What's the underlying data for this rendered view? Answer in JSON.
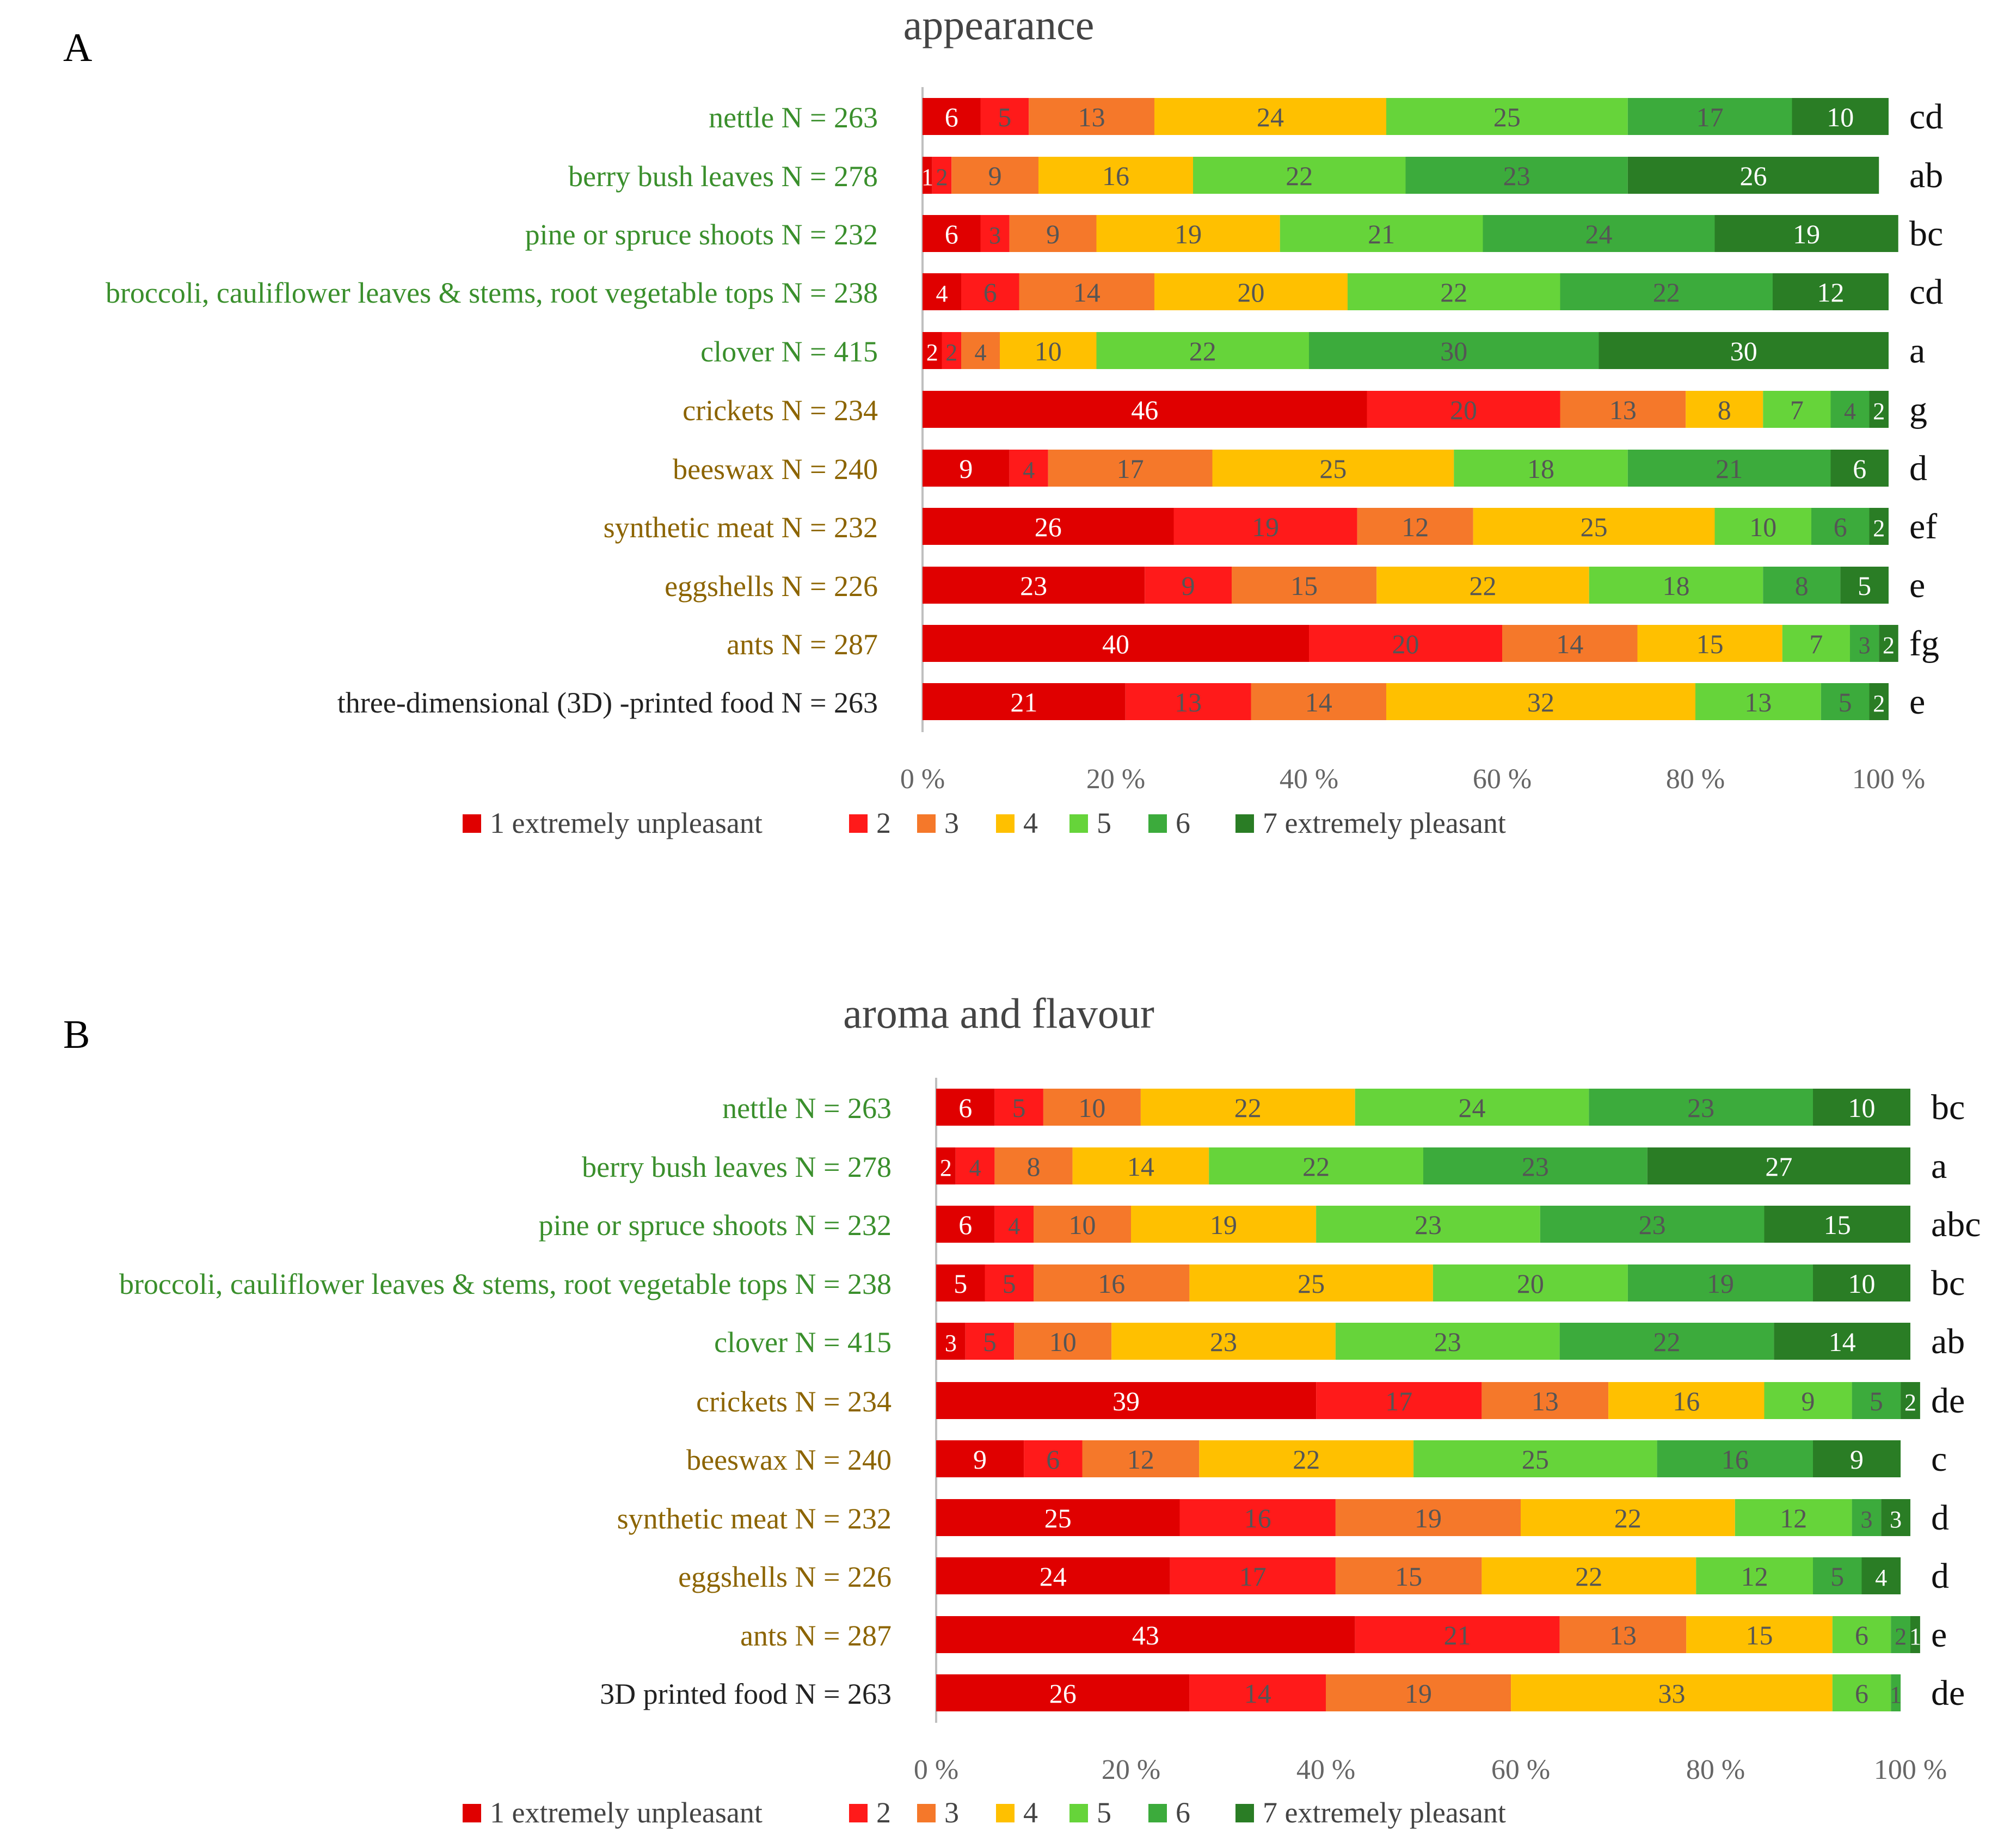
{
  "chart_data": [
    {
      "type": "bar",
      "stacked": true,
      "orientation": "horizontal",
      "panel_label": "A",
      "title": "appearance",
      "xlim": [
        0,
        100
      ],
      "xticks": [
        "0 %",
        "20 %",
        "40 %",
        "60 %",
        "80 %",
        "100 %"
      ],
      "categories": [
        {
          "label": "nettle N = 263",
          "group": "plant",
          "letters": "cd",
          "values": [
            6,
            5,
            13,
            24,
            25,
            17,
            10
          ]
        },
        {
          "label": "berry bush leaves N = 278",
          "group": "plant",
          "letters": "ab",
          "values": [
            1,
            2,
            9,
            16,
            22,
            23,
            26
          ]
        },
        {
          "label": "pine or spruce shoots N = 232",
          "group": "plant",
          "letters": "bc",
          "values": [
            6,
            3,
            9,
            19,
            21,
            24,
            19
          ]
        },
        {
          "label": "broccoli, cauliflower leaves & stems, root vegetable tops N = 238",
          "group": "plant",
          "letters": "cd",
          "values": [
            4,
            6,
            14,
            20,
            22,
            22,
            12
          ]
        },
        {
          "label": "clover N = 415",
          "group": "plant",
          "letters": "a",
          "values": [
            2,
            2,
            4,
            10,
            22,
            30,
            30
          ]
        },
        {
          "label": "crickets N = 234",
          "group": "novel",
          "letters": "g",
          "values": [
            46,
            20,
            13,
            8,
            7,
            4,
            2
          ]
        },
        {
          "label": "beeswax N = 240",
          "group": "novel",
          "letters": "d",
          "values": [
            9,
            4,
            17,
            25,
            18,
            21,
            6
          ]
        },
        {
          "label": "synthetic meat N = 232",
          "group": "novel",
          "letters": "ef",
          "values": [
            26,
            19,
            12,
            25,
            10,
            6,
            2
          ]
        },
        {
          "label": "eggshells N = 226",
          "group": "novel",
          "letters": "e",
          "values": [
            23,
            9,
            15,
            22,
            18,
            8,
            5
          ]
        },
        {
          "label": "ants N = 287",
          "group": "novel",
          "letters": "fg",
          "values": [
            40,
            20,
            14,
            15,
            7,
            3,
            2
          ]
        },
        {
          "label": "three-dimensional (3D) -printed food N = 263",
          "group": "other",
          "letters": "e",
          "values": [
            21,
            13,
            14,
            32,
            13,
            5,
            2
          ]
        }
      ]
    },
    {
      "type": "bar",
      "stacked": true,
      "orientation": "horizontal",
      "panel_label": "B",
      "title": "aroma and flavour",
      "xlim": [
        0,
        100
      ],
      "xticks": [
        "0 %",
        "20 %",
        "40 %",
        "60 %",
        "80 %",
        "100 %"
      ],
      "categories": [
        {
          "label": "nettle N = 263",
          "group": "plant",
          "letters": "bc",
          "values": [
            6,
            5,
            10,
            22,
            24,
            23,
            10
          ]
        },
        {
          "label": "berry bush leaves N = 278",
          "group": "plant",
          "letters": "a",
          "values": [
            2,
            4,
            8,
            14,
            22,
            23,
            27
          ]
        },
        {
          "label": "pine or spruce shoots N = 232",
          "group": "plant",
          "letters": "abc",
          "values": [
            6,
            4,
            10,
            19,
            23,
            23,
            15
          ]
        },
        {
          "label": "broccoli, cauliflower leaves & stems, root vegetable tops N = 238",
          "group": "plant",
          "letters": "bc",
          "values": [
            5,
            5,
            16,
            25,
            20,
            19,
            10
          ]
        },
        {
          "label": "clover N = 415",
          "group": "plant",
          "letters": "ab",
          "values": [
            3,
            5,
            10,
            23,
            23,
            22,
            14
          ]
        },
        {
          "label": "crickets N = 234",
          "group": "novel",
          "letters": "de",
          "values": [
            39,
            17,
            13,
            16,
            9,
            5,
            2
          ]
        },
        {
          "label": "beeswax N = 240",
          "group": "novel",
          "letters": "c",
          "values": [
            9,
            6,
            12,
            22,
            25,
            16,
            9
          ]
        },
        {
          "label": "synthetic meat N = 232",
          "group": "novel",
          "letters": "d",
          "values": [
            25,
            16,
            19,
            22,
            12,
            3,
            3
          ]
        },
        {
          "label": "eggshells N = 226",
          "group": "novel",
          "letters": "d",
          "values": [
            24,
            17,
            15,
            22,
            12,
            5,
            4
          ]
        },
        {
          "label": "ants N = 287",
          "group": "novel",
          "letters": "e",
          "values": [
            43,
            21,
            13,
            15,
            6,
            2,
            1
          ]
        },
        {
          "label": "3D printed food N = 263",
          "group": "other",
          "letters": "de",
          "values": [
            26,
            14,
            19,
            33,
            6,
            1,
            0
          ]
        }
      ]
    }
  ],
  "legend": [
    {
      "label": "1 extremely unpleasant",
      "color": "#e00000"
    },
    {
      "label": "2",
      "color": "#ff1a1a"
    },
    {
      "label": "3",
      "color": "#f5782a"
    },
    {
      "label": "4",
      "color": "#ffc000"
    },
    {
      "label": "5",
      "color": "#66d43a"
    },
    {
      "label": "6",
      "color": "#3cab3c"
    },
    {
      "label": "7 extremely pleasant",
      "color": "#2a7d25"
    }
  ],
  "label_colors": {
    "plant": "#3a8f2c",
    "novel": "#8c6400",
    "other": "#222222"
  }
}
